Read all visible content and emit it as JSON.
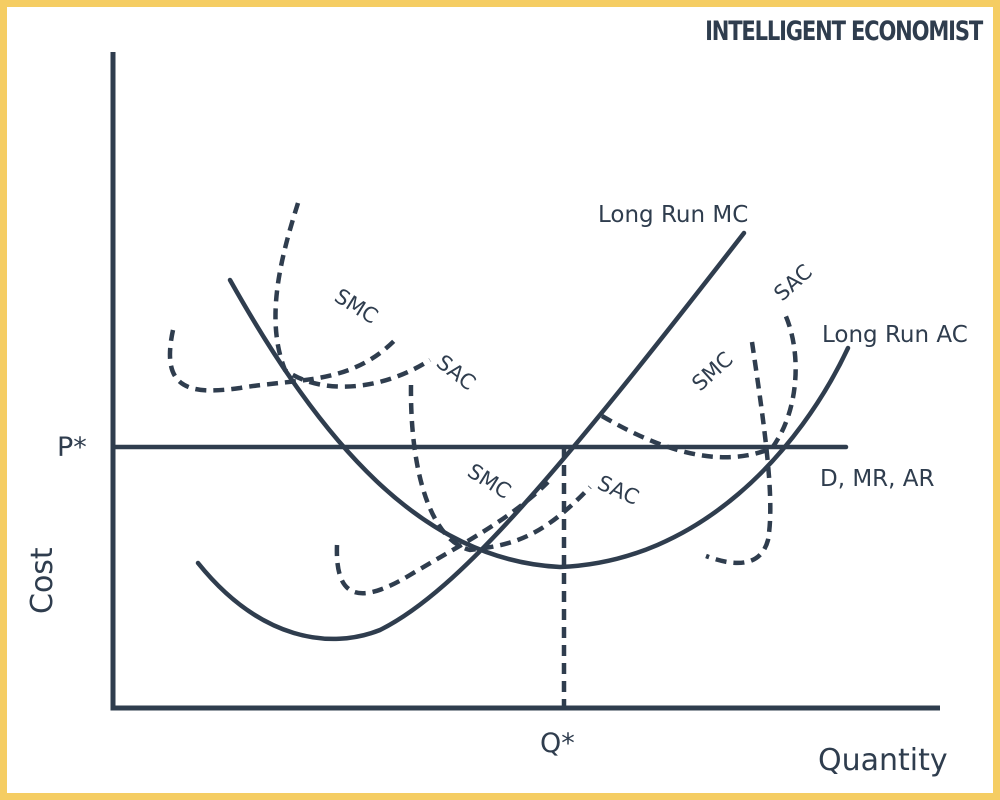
{
  "brand": "INTELLIGENT ECONOMIST",
  "axes": {
    "y_label": "Cost",
    "x_label": "Quantity",
    "p_star": "P*",
    "q_star": "Q*"
  },
  "curves": {
    "long_run_mc": "Long Run MC",
    "long_run_ac": "Long Run AC",
    "demand": "D, MR, AR",
    "smc_1": "SMC",
    "sac_1": "SAC",
    "smc_2": "SMC",
    "sac_2": "SAC",
    "smc_3": "SMC",
    "sac_3": "SAC"
  },
  "colors": {
    "border": "#f5cd63",
    "ink": "#2f3d4e",
    "background": "#ffffff"
  }
}
